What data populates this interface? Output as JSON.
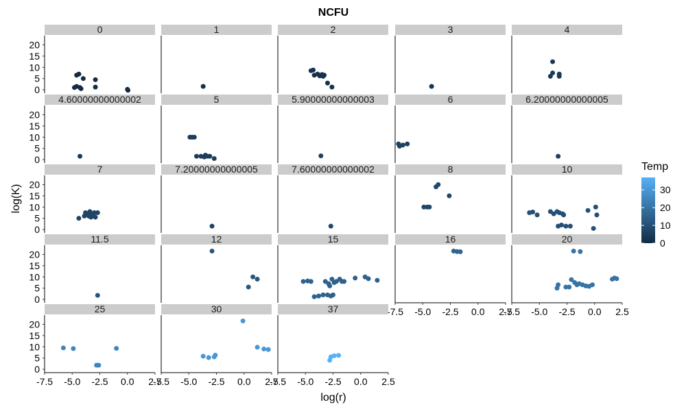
{
  "chart_data": {
    "type": "scatter",
    "title": "NCFU",
    "xlabel": "log(r)",
    "ylabel": "log(K)",
    "xlim": [
      -7.5,
      2.5
    ],
    "ylim": [
      0,
      22
    ],
    "xticks": [
      "-7.5",
      "-5.0",
      "-2.5",
      "0.0",
      "2.5"
    ],
    "yticks": [
      "0",
      "5",
      "10",
      "15",
      "20"
    ],
    "legend": {
      "title": "Temp",
      "ticks": [
        "0",
        "10",
        "20",
        "30"
      ],
      "range": [
        0,
        37
      ],
      "color_low": "#132B43",
      "color_high": "#56B1F7",
      "placement": "right"
    },
    "facets": [
      {
        "label": "0",
        "temp": 0,
        "points": [
          [
            -4.8,
            1
          ],
          [
            -4.6,
            1.5
          ],
          [
            -4.3,
            1
          ],
          [
            -4.2,
            0.5
          ],
          [
            -4.6,
            6.5
          ],
          [
            -4.4,
            7
          ],
          [
            -4,
            5
          ],
          [
            -2.9,
            4.5
          ],
          [
            -2.9,
            1.2
          ],
          [
            0,
            0.2
          ],
          [
            0.05,
            -0.2
          ]
        ]
      },
      {
        "label": "1",
        "temp": 1,
        "points": [
          [
            -3.7,
            1.5
          ]
        ]
      },
      {
        "label": "2",
        "temp": 2,
        "points": [
          [
            -4.5,
            8.5
          ],
          [
            -4.3,
            8.8
          ],
          [
            -4.2,
            6.5
          ],
          [
            -3.9,
            7
          ],
          [
            -3.7,
            6.2
          ],
          [
            -3.5,
            6.8
          ],
          [
            -3.4,
            6
          ],
          [
            -3.3,
            6.5
          ],
          [
            -3,
            3
          ],
          [
            -2.6,
            1.2
          ]
        ]
      },
      {
        "label": "3",
        "temp": 3,
        "points": [
          [
            -4.2,
            1.5
          ]
        ]
      },
      {
        "label": "4",
        "temp": 4,
        "points": [
          [
            -3.8,
            12.5
          ],
          [
            -3.8,
            7.5
          ],
          [
            -4,
            6
          ],
          [
            -3.2,
            6
          ],
          [
            -3.2,
            7
          ]
        ]
      },
      {
        "label": "4.60000000000002",
        "temp": 4.6,
        "points": [
          [
            -4.3,
            1.5
          ]
        ]
      },
      {
        "label": "5",
        "temp": 5,
        "points": [
          [
            -4.9,
            10
          ],
          [
            -4.7,
            10
          ],
          [
            -4.5,
            10
          ],
          [
            -4.3,
            1.5
          ],
          [
            -3.9,
            1.5
          ],
          [
            -3.6,
            1.2
          ],
          [
            -3.5,
            2
          ],
          [
            -3.3,
            1.5
          ],
          [
            -3.1,
            1.5
          ],
          [
            -2.7,
            0.5
          ]
        ]
      },
      {
        "label": "5.90000000000003",
        "temp": 5.9,
        "points": [
          [
            -3.6,
            1.7
          ]
        ]
      },
      {
        "label": "6",
        "temp": 6,
        "points": [
          [
            -7.2,
            7
          ],
          [
            -7.1,
            6
          ],
          [
            -6.8,
            6.5
          ],
          [
            -6.4,
            7
          ]
        ]
      },
      {
        "label": "6.20000000000005",
        "temp": 6.2,
        "points": [
          [
            -3.3,
            1.5
          ]
        ]
      },
      {
        "label": "7",
        "temp": 7,
        "points": [
          [
            -4.4,
            5
          ],
          [
            -3.9,
            6
          ],
          [
            -3.8,
            7.5
          ],
          [
            -3.6,
            7
          ],
          [
            -3.5,
            6
          ],
          [
            -3.4,
            8
          ],
          [
            -3.3,
            5.5
          ],
          [
            -3.2,
            7
          ],
          [
            -3.1,
            6.5
          ],
          [
            -3,
            7.5
          ],
          [
            -2.9,
            5.5
          ],
          [
            -2.7,
            7.5
          ]
        ]
      },
      {
        "label": "7.20000000000005",
        "temp": 7.2,
        "points": [
          [
            -2.9,
            1.5
          ]
        ]
      },
      {
        "label": "7.60000000000002",
        "temp": 7.6,
        "points": [
          [
            -2.7,
            1.5
          ]
        ]
      },
      {
        "label": "8",
        "temp": 8,
        "points": [
          [
            -4.9,
            10
          ],
          [
            -4.6,
            10
          ],
          [
            -4.4,
            10
          ],
          [
            -3.8,
            19
          ],
          [
            -3.6,
            20
          ],
          [
            -2.6,
            15
          ]
        ]
      },
      {
        "label": "10",
        "temp": 10,
        "points": [
          [
            -5.9,
            7.5
          ],
          [
            -5.6,
            7.8
          ],
          [
            -5.2,
            6.5
          ],
          [
            -4,
            8
          ],
          [
            -3.7,
            7
          ],
          [
            -3.4,
            8
          ],
          [
            -3.2,
            7.5
          ],
          [
            -2.9,
            7
          ],
          [
            -2.8,
            6.5
          ],
          [
            -3.3,
            1.5
          ],
          [
            -3,
            2
          ],
          [
            -2.6,
            1.5
          ],
          [
            -2.2,
            1.5
          ],
          [
            -0.6,
            8.5
          ],
          [
            0.1,
            10
          ],
          [
            0.2,
            6.5
          ],
          [
            -0.1,
            0.5
          ]
        ]
      },
      {
        "label": "11.5",
        "temp": 11.5,
        "points": [
          [
            -2.7,
            1.8
          ]
        ]
      },
      {
        "label": "12",
        "temp": 12,
        "points": [
          [
            -2.9,
            21.5
          ],
          [
            0.4,
            5.5
          ],
          [
            0.8,
            10
          ],
          [
            1.2,
            9
          ]
        ]
      },
      {
        "label": "15",
        "temp": 15,
        "points": [
          [
            -5.2,
            8
          ],
          [
            -4.8,
            8.2
          ],
          [
            -4.5,
            8
          ],
          [
            -4.2,
            1.2
          ],
          [
            -3.8,
            1.5
          ],
          [
            -3.4,
            2
          ],
          [
            -3.2,
            8
          ],
          [
            -2.9,
            7
          ],
          [
            -2.8,
            6
          ],
          [
            -2.6,
            9
          ],
          [
            -2.4,
            7.5
          ],
          [
            -2.2,
            8
          ],
          [
            -1.9,
            9
          ],
          [
            -1.7,
            8
          ],
          [
            -1.5,
            8
          ],
          [
            -3,
            2
          ],
          [
            -2.7,
            1.5
          ],
          [
            -2.5,
            2
          ],
          [
            -0.5,
            9.5
          ],
          [
            0.4,
            10
          ],
          [
            0.7,
            9.2
          ],
          [
            1.5,
            8.5
          ]
        ]
      },
      {
        "label": "16",
        "temp": 16,
        "points": [
          [
            -2.2,
            21.5
          ],
          [
            -1.9,
            21.3
          ],
          [
            -1.6,
            21.2
          ]
        ]
      },
      {
        "label": "20",
        "temp": 20,
        "points": [
          [
            -3.4,
            5
          ],
          [
            -3.3,
            6.5
          ],
          [
            -2.6,
            5.5
          ],
          [
            -2.3,
            5.5
          ],
          [
            -2.1,
            8.8
          ],
          [
            -1.8,
            7.5
          ],
          [
            -1.6,
            6.5
          ],
          [
            -1.4,
            7
          ],
          [
            -1.1,
            6.5
          ],
          [
            -0.8,
            6
          ],
          [
            -0.5,
            5.8
          ],
          [
            -0.2,
            6.5
          ],
          [
            -1.9,
            21.5
          ],
          [
            -1.3,
            21.3
          ],
          [
            1.6,
            9
          ],
          [
            1.8,
            9.5
          ],
          [
            2,
            9.2
          ]
        ]
      },
      {
        "label": "25",
        "temp": 25,
        "points": [
          [
            -5.8,
            9.5
          ],
          [
            -4.9,
            9.2
          ],
          [
            -2.8,
            1.8
          ],
          [
            -2.6,
            1.8
          ],
          [
            -1,
            9.3
          ]
        ]
      },
      {
        "label": "30",
        "temp": 30,
        "points": [
          [
            -3.7,
            5.8
          ],
          [
            -3.2,
            5.2
          ],
          [
            -2.7,
            5.5
          ],
          [
            -2.6,
            6.3
          ],
          [
            -0.1,
            21.5
          ],
          [
            1.2,
            9.8
          ],
          [
            1.8,
            9
          ],
          [
            2.2,
            8.8
          ]
        ]
      },
      {
        "label": "37",
        "temp": 37,
        "points": [
          [
            -2.8,
            4
          ],
          [
            -2.7,
            5.5
          ],
          [
            -2.4,
            6
          ],
          [
            -2,
            6.2
          ]
        ]
      }
    ]
  }
}
